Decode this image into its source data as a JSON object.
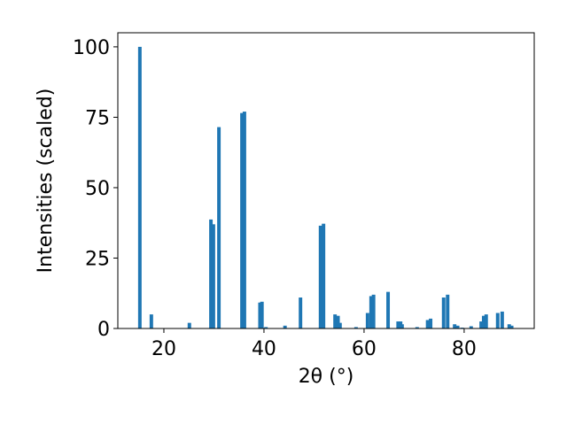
{
  "chart_data": {
    "type": "bar",
    "x_label": "2θ (°)",
    "y_label": "Intensities (scaled)",
    "color": "#1f77b4",
    "x": [
      15.2,
      17.5,
      25.1,
      29.4,
      29.9,
      31.0,
      35.6,
      36.1,
      39.2,
      39.6,
      40.4,
      44.2,
      47.3,
      51.3,
      51.9,
      54.2,
      54.8,
      55.2,
      58.4,
      60.7,
      61.4,
      61.9,
      64.8,
      66.8,
      67.3,
      67.6,
      70.6,
      72.7,
      73.3,
      75.9,
      76.7,
      78.1,
      78.7,
      79.6,
      81.4,
      83.4,
      83.9,
      84.4,
      86.7,
      87.6,
      89.0,
      89.5
    ],
    "values": [
      100,
      5,
      2,
      38.7,
      37,
      71.5,
      76.5,
      77,
      9.2,
      9.5,
      0.5,
      1,
      11,
      36.5,
      37.2,
      5,
      4.5,
      2,
      0.5,
      5.5,
      11.5,
      12,
      13,
      2.5,
      2.5,
      1.5,
      0.5,
      3,
      3.5,
      11,
      12,
      1.5,
      1,
      0.3,
      0.8,
      2.5,
      4.5,
      5,
      5.5,
      6,
      1.5,
      1
    ],
    "xlim": [
      10.8,
      94
    ],
    "ylim": [
      0,
      105
    ],
    "xticks": [
      20,
      40,
      60,
      80
    ],
    "yticks": [
      0,
      25,
      50,
      75,
      100
    ]
  }
}
